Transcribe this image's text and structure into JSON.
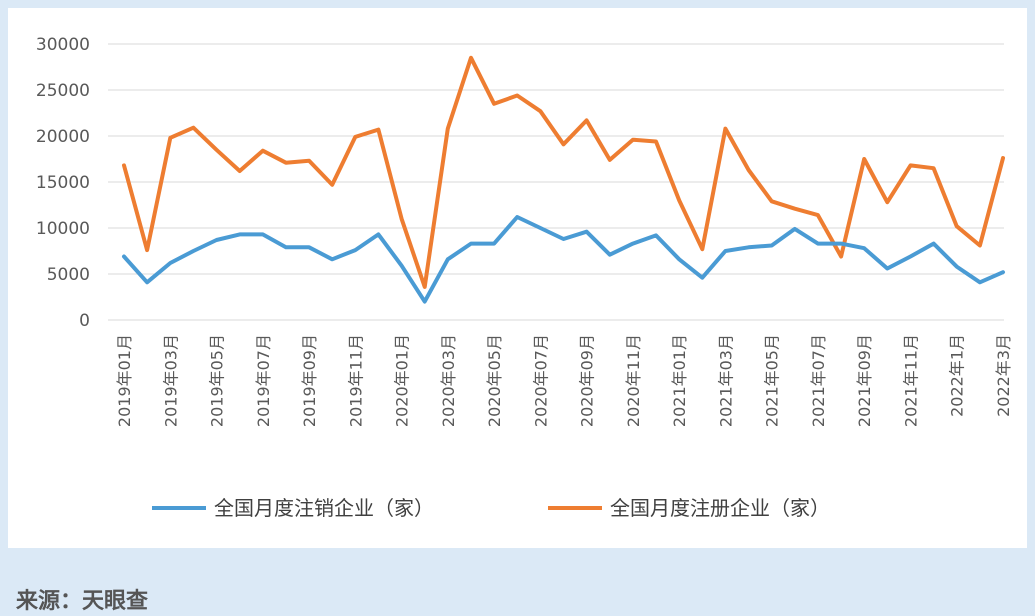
{
  "chart_data": {
    "type": "line",
    "title": "",
    "xlabel": "",
    "ylabel": "",
    "ylim": [
      0,
      30000
    ],
    "yticks": [
      0,
      5000,
      10000,
      15000,
      20000,
      25000,
      30000
    ],
    "grid": "horizontal",
    "legend_position": "bottom",
    "categories": [
      "2019年01月",
      "2019年02月",
      "2019年03月",
      "2019年04月",
      "2019年05月",
      "2019年06月",
      "2019年07月",
      "2019年08月",
      "2019年09月",
      "2019年10月",
      "2019年11月",
      "2019年12月",
      "2020年01月",
      "2020年02月",
      "2020年03月",
      "2020年04月",
      "2020年05月",
      "2020年06月",
      "2020年07月",
      "2020年08月",
      "2020年09月",
      "2020年10月",
      "2020年11月",
      "2020年12月",
      "2021年01月",
      "2021年02月",
      "2021年03月",
      "2021年04月",
      "2021年05月",
      "2021年06月",
      "2021年07月",
      "2021年08月",
      "2021年09月",
      "2021年10月",
      "2021年11月",
      "2021年12月",
      "2022年1月",
      "2022年2月",
      "2022年3月"
    ],
    "tick_labels": [
      "2019年01月",
      "2019年03月",
      "2019年05月",
      "2019年07月",
      "2019年09月",
      "2019年11月",
      "2020年01月",
      "2020年03月",
      "2020年05月",
      "2020年07月",
      "2020年09月",
      "2020年11月",
      "2021年01月",
      "2021年03月",
      "2021年05月",
      "2021年07月",
      "2021年09月",
      "2021年11月",
      "2022年1月",
      "2022年3月"
    ],
    "series": [
      {
        "name": "全国月度注销企业（家）",
        "color": "#4a9bd4",
        "values": [
          6900,
          4100,
          6200,
          7500,
          8700,
          9300,
          9300,
          7900,
          7900,
          6600,
          7600,
          9300,
          5900,
          2000,
          6600,
          8300,
          8300,
          11200,
          10000,
          8800,
          9600,
          7100,
          8300,
          9200,
          6600,
          4600,
          7500,
          7900,
          8100,
          9900,
          8300,
          8300,
          7800,
          5600,
          6900,
          8300,
          5800,
          4100,
          5200
        ]
      },
      {
        "name": "全国月度注册企业（家）",
        "color": "#ee7d31",
        "values": [
          16800,
          7600,
          19800,
          20900,
          18500,
          16200,
          18400,
          17100,
          17300,
          14700,
          19900,
          20700,
          11000,
          3600,
          20800,
          28500,
          23500,
          24400,
          22700,
          19100,
          21700,
          17400,
          19600,
          19400,
          13000,
          7700,
          20800,
          16300,
          12900,
          12100,
          11400,
          6900,
          17500,
          12800,
          16800,
          16500,
          10200,
          8100,
          17600
        ]
      }
    ]
  },
  "source": "来源：天眼查"
}
